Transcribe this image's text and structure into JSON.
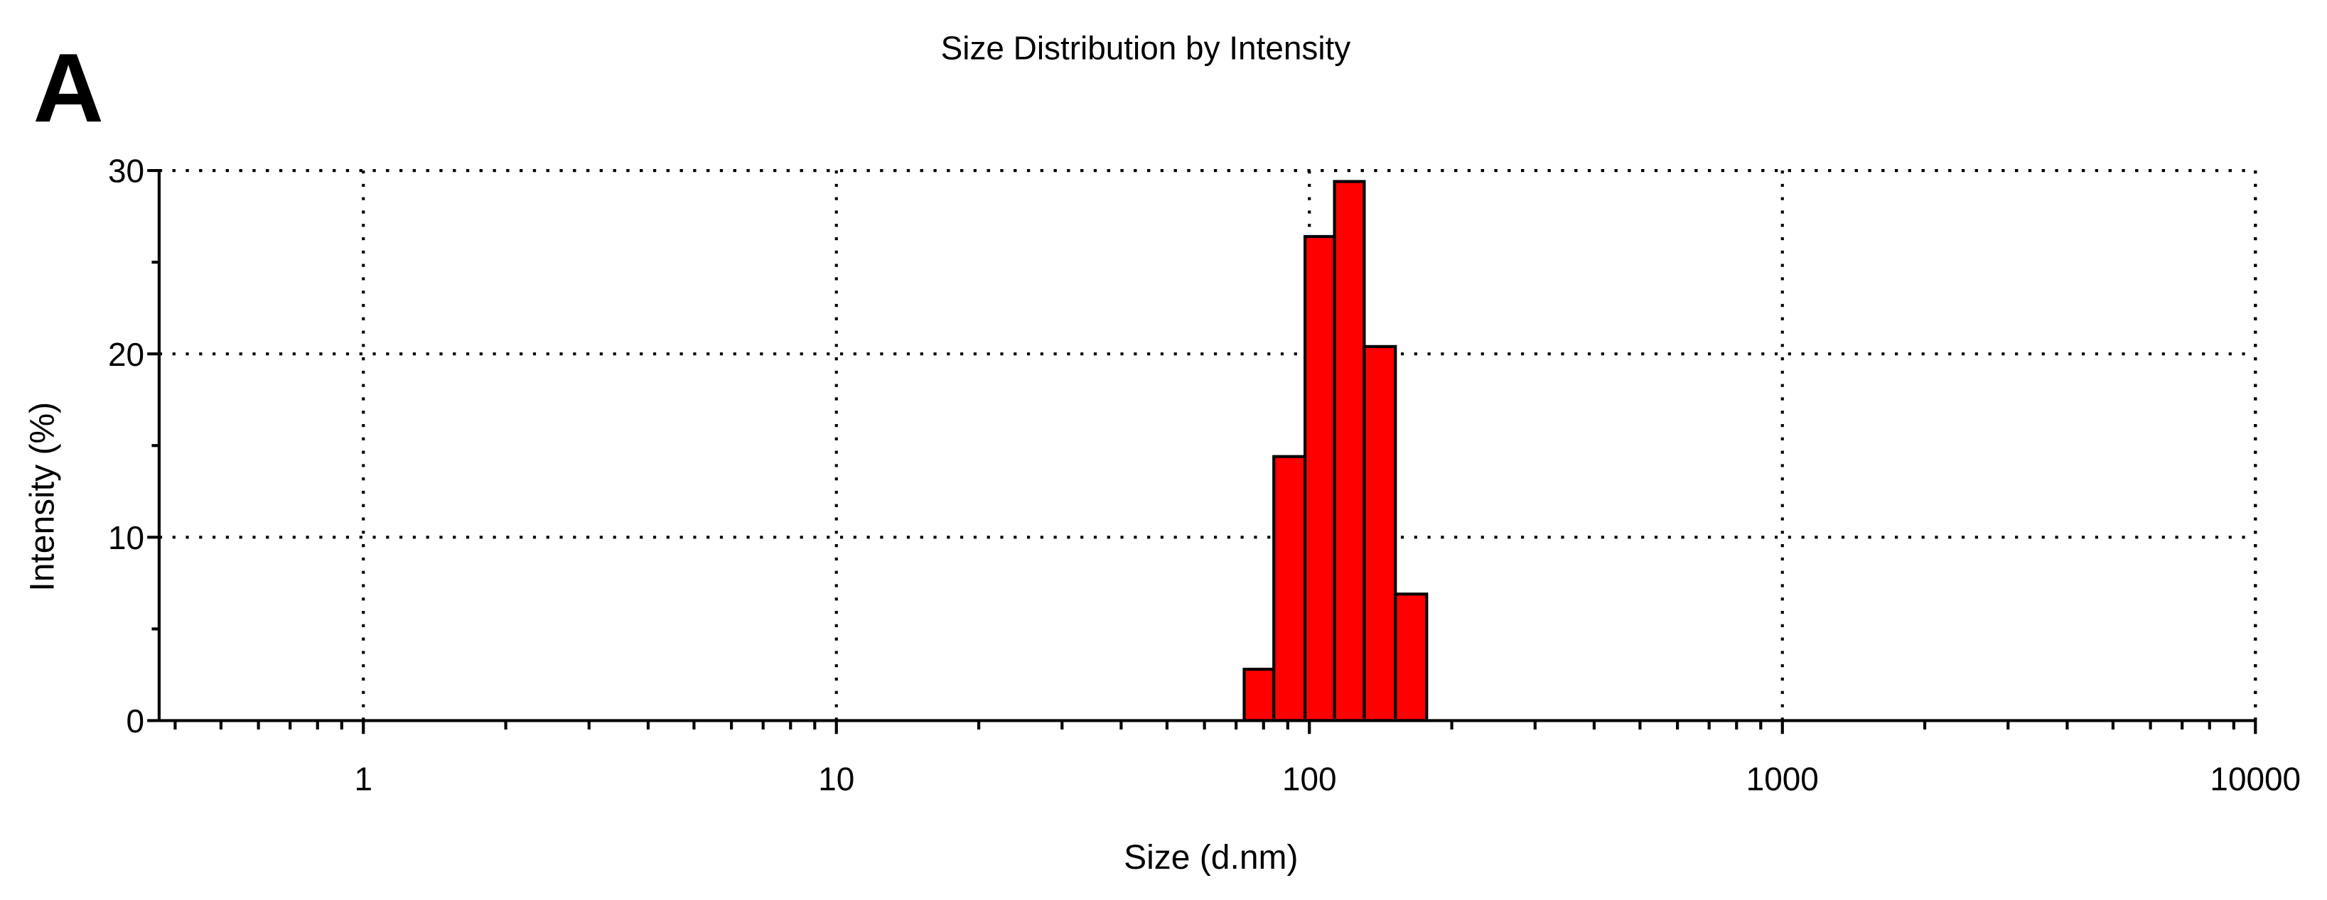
{
  "panel_label": "A",
  "chart_data": {
    "type": "histogram",
    "title": "Size Distribution by Intensity",
    "xlabel": "Size (d.nm)",
    "ylabel": "Intensity (%)",
    "bins": [
      72.8,
      84.1,
      97.9,
      113,
      130.6,
      152,
      177
    ],
    "counts": [
      2.8,
      14.4,
      26.4,
      29.4,
      20.4,
      6.9
    ],
    "color": "#ff0000",
    "xscale": "log",
    "xlim": [
      0.37,
      10000
    ],
    "xticks": [
      1,
      10,
      100,
      1000,
      10000
    ],
    "ylim": [
      0,
      30
    ],
    "yticks": [
      0,
      10,
      20,
      30
    ],
    "grid": true
  }
}
